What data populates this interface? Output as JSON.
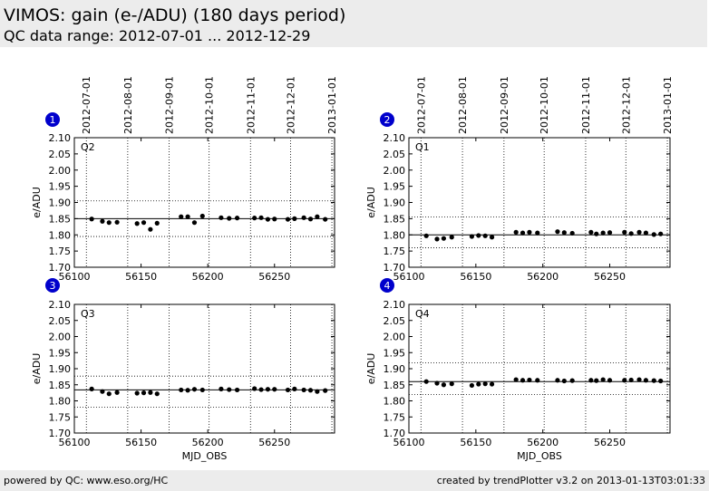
{
  "header": {
    "title": "VIMOS: gain (e-/ADU) (180 days period)",
    "subtitle": "QC data range: 2012-07-01 ... 2012-12-29"
  },
  "footer": {
    "left": "powered by QC: www.eso.org/HC",
    "right": "created by trendPlotter v3.2 on 2013-01-13T03:01:33"
  },
  "colors": {
    "badge": "#0000cc",
    "points": "#000000",
    "header_bg": "#ececec"
  },
  "chart_data": [
    {
      "type": "scatter",
      "badge": "1",
      "label": "Q2",
      "xlim": [
        56100,
        56295
      ],
      "ylim": [
        1.7,
        2.1
      ],
      "xticks": [
        "56100",
        "56150",
        "56200",
        "56250"
      ],
      "yticks": [
        "1.70",
        "1.75",
        "1.80",
        "1.85",
        "1.90",
        "1.95",
        "2.00",
        "2.05",
        "2.10"
      ],
      "ylabel": "e/ADU",
      "xlabel": "",
      "date_ticks": [
        "2012-07-01",
        "2012-08-01",
        "2012-09-01",
        "2012-10-01",
        "2012-11-01",
        "2012-12-01",
        "2013-01-01"
      ],
      "date_tick_mjd": [
        56109,
        56140,
        56171,
        56201,
        56232,
        56262,
        56293
      ],
      "mean": 1.85,
      "band": [
        1.795,
        1.905
      ],
      "points": [
        [
          56113,
          1.849
        ],
        [
          56121,
          1.842
        ],
        [
          56126,
          1.838
        ],
        [
          56132,
          1.839
        ],
        [
          56147,
          1.835
        ],
        [
          56152,
          1.838
        ],
        [
          56157,
          1.817
        ],
        [
          56162,
          1.836
        ],
        [
          56180,
          1.856
        ],
        [
          56185,
          1.856
        ],
        [
          56190,
          1.838
        ],
        [
          56196,
          1.858
        ],
        [
          56210,
          1.853
        ],
        [
          56216,
          1.851
        ],
        [
          56222,
          1.852
        ],
        [
          56235,
          1.852
        ],
        [
          56240,
          1.853
        ],
        [
          56245,
          1.848
        ],
        [
          56250,
          1.849
        ],
        [
          56260,
          1.848
        ],
        [
          56265,
          1.85
        ],
        [
          56272,
          1.853
        ],
        [
          56277,
          1.849
        ],
        [
          56282,
          1.856
        ],
        [
          56288,
          1.848
        ]
      ]
    },
    {
      "type": "scatter",
      "badge": "2",
      "label": "Q1",
      "xlim": [
        56100,
        56295
      ],
      "ylim": [
        1.7,
        2.1
      ],
      "xticks": [
        "56100",
        "56150",
        "56200",
        "56250"
      ],
      "yticks": [
        "1.70",
        "1.75",
        "1.80",
        "1.85",
        "1.90",
        "1.95",
        "2.00",
        "2.05",
        "2.10"
      ],
      "ylabel": "e/ADU",
      "xlabel": "",
      "date_ticks": [
        "2012-07-01",
        "2012-08-01",
        "2012-09-01",
        "2012-10-01",
        "2012-11-01",
        "2012-12-01",
        "2013-01-01"
      ],
      "date_tick_mjd": [
        56109,
        56140,
        56171,
        56201,
        56232,
        56262,
        56293
      ],
      "mean": 1.8,
      "band": [
        1.76,
        1.855
      ],
      "points": [
        [
          56113,
          1.797
        ],
        [
          56121,
          1.787
        ],
        [
          56126,
          1.789
        ],
        [
          56132,
          1.793
        ],
        [
          56147,
          1.795
        ],
        [
          56152,
          1.798
        ],
        [
          56157,
          1.797
        ],
        [
          56162,
          1.793
        ],
        [
          56180,
          1.808
        ],
        [
          56185,
          1.806
        ],
        [
          56190,
          1.808
        ],
        [
          56196,
          1.806
        ],
        [
          56211,
          1.81
        ],
        [
          56216,
          1.807
        ],
        [
          56222,
          1.805
        ],
        [
          56236,
          1.808
        ],
        [
          56240,
          1.803
        ],
        [
          56245,
          1.806
        ],
        [
          56250,
          1.807
        ],
        [
          56261,
          1.808
        ],
        [
          56266,
          1.804
        ],
        [
          56272,
          1.808
        ],
        [
          56277,
          1.806
        ],
        [
          56283,
          1.801
        ],
        [
          56288,
          1.803
        ]
      ]
    },
    {
      "type": "scatter",
      "badge": "3",
      "label": "Q3",
      "xlim": [
        56100,
        56295
      ],
      "ylim": [
        1.7,
        2.1
      ],
      "xticks": [
        "56100",
        "56150",
        "56200",
        "56250"
      ],
      "yticks": [
        "1.70",
        "1.75",
        "1.80",
        "1.85",
        "1.90",
        "1.95",
        "2.00",
        "2.05",
        "2.10"
      ],
      "ylabel": "e/ADU",
      "xlabel": "MJD_OBS",
      "date_ticks": [],
      "date_tick_mjd": [
        56109,
        56140,
        56171,
        56201,
        56232,
        56262,
        56293
      ],
      "mean": 1.834,
      "band": [
        1.78,
        1.877
      ],
      "points": [
        [
          56113,
          1.837
        ],
        [
          56121,
          1.829
        ],
        [
          56126,
          1.822
        ],
        [
          56132,
          1.826
        ],
        [
          56147,
          1.824
        ],
        [
          56152,
          1.825
        ],
        [
          56157,
          1.826
        ],
        [
          56162,
          1.822
        ],
        [
          56180,
          1.834
        ],
        [
          56185,
          1.833
        ],
        [
          56190,
          1.836
        ],
        [
          56196,
          1.834
        ],
        [
          56210,
          1.837
        ],
        [
          56216,
          1.835
        ],
        [
          56222,
          1.834
        ],
        [
          56235,
          1.838
        ],
        [
          56240,
          1.835
        ],
        [
          56245,
          1.836
        ],
        [
          56250,
          1.836
        ],
        [
          56260,
          1.834
        ],
        [
          56265,
          1.837
        ],
        [
          56272,
          1.834
        ],
        [
          56277,
          1.833
        ],
        [
          56282,
          1.829
        ],
        [
          56288,
          1.832
        ]
      ]
    },
    {
      "type": "scatter",
      "badge": "4",
      "label": "Q4",
      "xlim": [
        56100,
        56295
      ],
      "ylim": [
        1.7,
        2.1
      ],
      "xticks": [
        "56100",
        "56150",
        "56200",
        "56250"
      ],
      "yticks": [
        "1.70",
        "1.75",
        "1.80",
        "1.85",
        "1.90",
        "1.95",
        "2.00",
        "2.05",
        "2.10"
      ],
      "ylabel": "e/ADU",
      "xlabel": "MJD_OBS",
      "date_ticks": [],
      "date_tick_mjd": [
        56109,
        56140,
        56171,
        56201,
        56232,
        56262,
        56293
      ],
      "mean": 1.86,
      "band": [
        1.82,
        1.918
      ],
      "points": [
        [
          56113,
          1.86
        ],
        [
          56121,
          1.855
        ],
        [
          56126,
          1.85
        ],
        [
          56132,
          1.853
        ],
        [
          56147,
          1.848
        ],
        [
          56152,
          1.852
        ],
        [
          56157,
          1.853
        ],
        [
          56162,
          1.852
        ],
        [
          56180,
          1.866
        ],
        [
          56185,
          1.864
        ],
        [
          56190,
          1.865
        ],
        [
          56196,
          1.864
        ],
        [
          56211,
          1.864
        ],
        [
          56216,
          1.862
        ],
        [
          56222,
          1.863
        ],
        [
          56236,
          1.864
        ],
        [
          56240,
          1.863
        ],
        [
          56245,
          1.866
        ],
        [
          56250,
          1.864
        ],
        [
          56261,
          1.864
        ],
        [
          56266,
          1.865
        ],
        [
          56272,
          1.866
        ],
        [
          56277,
          1.864
        ],
        [
          56283,
          1.863
        ],
        [
          56288,
          1.862
        ]
      ]
    }
  ]
}
